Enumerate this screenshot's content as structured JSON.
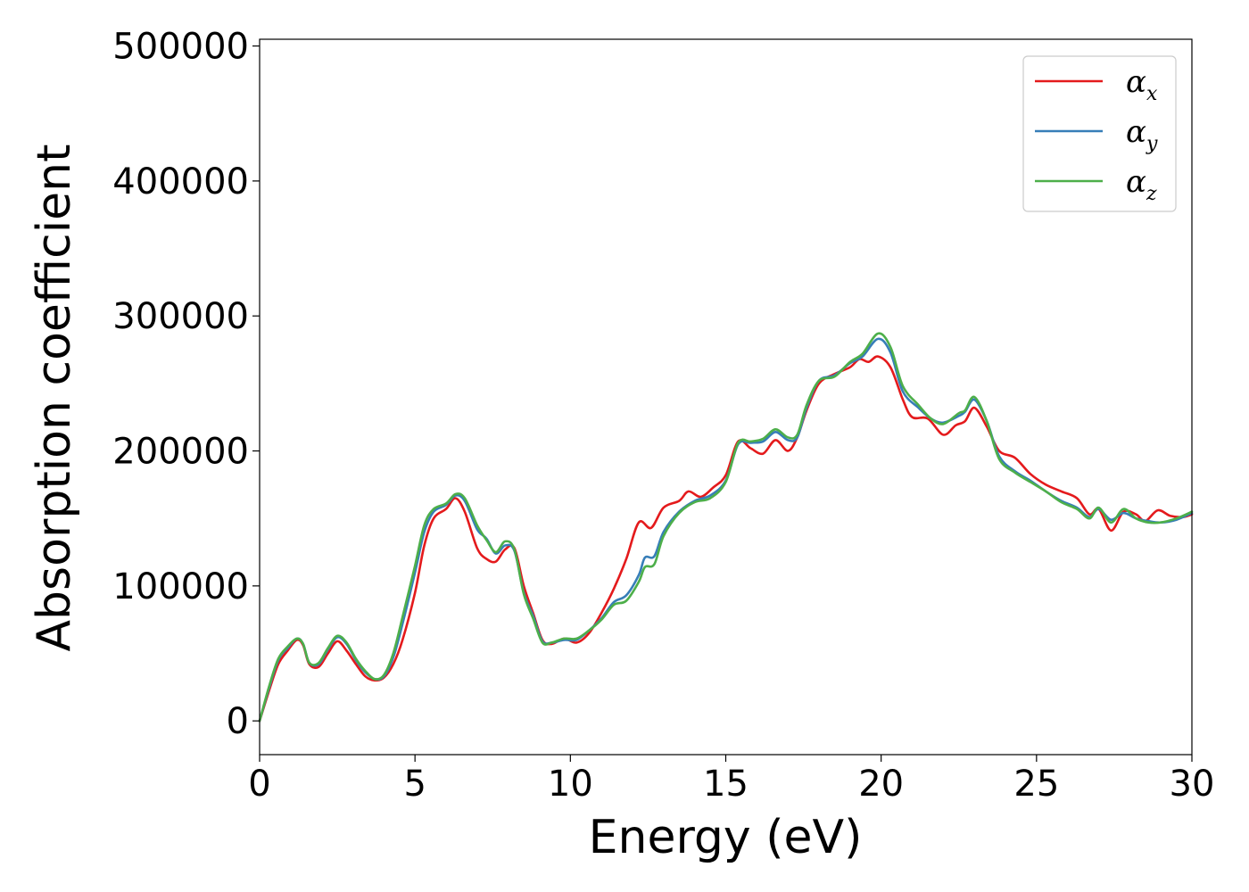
{
  "chart_data": {
    "type": "line",
    "xlabel": "Energy (eV)",
    "ylabel": "Absorption coefficient",
    "xlim": [
      0,
      30
    ],
    "ylim": [
      -25000,
      505000
    ],
    "xticks": [
      "0",
      "5",
      "10",
      "15",
      "20",
      "25",
      "30"
    ],
    "yticks": [
      "0",
      "100000",
      "200000",
      "300000",
      "400000",
      "500000"
    ],
    "grid": false,
    "legend_position": "top-right",
    "series": [
      {
        "name": "αx",
        "symbol": "α",
        "subscript": "x",
        "color": "#e41a1c",
        "points": [
          [
            0,
            0
          ],
          [
            0.3,
            22000
          ],
          [
            0.6,
            42000
          ],
          [
            0.9,
            52000
          ],
          [
            1.2,
            60000
          ],
          [
            1.4,
            56000
          ],
          [
            1.6,
            42000
          ],
          [
            1.9,
            40000
          ],
          [
            2.2,
            50000
          ],
          [
            2.5,
            59000
          ],
          [
            2.8,
            52000
          ],
          [
            3.1,
            42000
          ],
          [
            3.4,
            33000
          ],
          [
            3.7,
            30000
          ],
          [
            4.0,
            32000
          ],
          [
            4.3,
            42000
          ],
          [
            4.6,
            60000
          ],
          [
            5.0,
            95000
          ],
          [
            5.3,
            130000
          ],
          [
            5.6,
            150000
          ],
          [
            6.0,
            157000
          ],
          [
            6.3,
            165000
          ],
          [
            6.6,
            155000
          ],
          [
            7.0,
            128000
          ],
          [
            7.3,
            120000
          ],
          [
            7.6,
            118000
          ],
          [
            7.9,
            127000
          ],
          [
            8.2,
            128000
          ],
          [
            8.5,
            100000
          ],
          [
            8.8,
            80000
          ],
          [
            9.1,
            60000
          ],
          [
            9.4,
            57000
          ],
          [
            9.8,
            61000
          ],
          [
            10.2,
            58000
          ],
          [
            10.6,
            65000
          ],
          [
            11.0,
            80000
          ],
          [
            11.4,
            98000
          ],
          [
            11.8,
            120000
          ],
          [
            12.2,
            147000
          ],
          [
            12.6,
            143000
          ],
          [
            13.0,
            158000
          ],
          [
            13.5,
            163000
          ],
          [
            13.8,
            170000
          ],
          [
            14.2,
            166000
          ],
          [
            14.6,
            173000
          ],
          [
            15.0,
            182000
          ],
          [
            15.4,
            207000
          ],
          [
            15.8,
            202000
          ],
          [
            16.2,
            198000
          ],
          [
            16.6,
            208000
          ],
          [
            17.0,
            200000
          ],
          [
            17.3,
            210000
          ],
          [
            17.6,
            230000
          ],
          [
            18.0,
            250000
          ],
          [
            18.5,
            257000
          ],
          [
            19.0,
            262000
          ],
          [
            19.3,
            268000
          ],
          [
            19.6,
            266000
          ],
          [
            19.9,
            270000
          ],
          [
            20.3,
            262000
          ],
          [
            20.7,
            238000
          ],
          [
            21.0,
            225000
          ],
          [
            21.5,
            224000
          ],
          [
            22.0,
            212000
          ],
          [
            22.4,
            219000
          ],
          [
            22.7,
            222000
          ],
          [
            23.0,
            232000
          ],
          [
            23.4,
            218000
          ],
          [
            23.8,
            200000
          ],
          [
            24.3,
            195000
          ],
          [
            24.8,
            183000
          ],
          [
            25.3,
            175000
          ],
          [
            25.8,
            170000
          ],
          [
            26.3,
            165000
          ],
          [
            26.7,
            153000
          ],
          [
            27.0,
            157000
          ],
          [
            27.4,
            141000
          ],
          [
            27.8,
            155000
          ],
          [
            28.2,
            153000
          ],
          [
            28.5,
            148000
          ],
          [
            28.9,
            156000
          ],
          [
            29.3,
            152000
          ],
          [
            29.7,
            151000
          ],
          [
            30.0,
            153000
          ]
        ]
      },
      {
        "name": "αy",
        "symbol": "α",
        "subscript": "y",
        "color": "#377eb8",
        "points": [
          [
            0,
            0
          ],
          [
            0.3,
            24000
          ],
          [
            0.6,
            45000
          ],
          [
            0.9,
            54000
          ],
          [
            1.2,
            61000
          ],
          [
            1.4,
            57000
          ],
          [
            1.6,
            43000
          ],
          [
            1.9,
            42000
          ],
          [
            2.2,
            53000
          ],
          [
            2.5,
            62000
          ],
          [
            2.8,
            57000
          ],
          [
            3.1,
            45000
          ],
          [
            3.4,
            36000
          ],
          [
            3.7,
            31000
          ],
          [
            4.0,
            33000
          ],
          [
            4.3,
            47000
          ],
          [
            4.6,
            72000
          ],
          [
            5.0,
            110000
          ],
          [
            5.3,
            140000
          ],
          [
            5.6,
            155000
          ],
          [
            6.0,
            160000
          ],
          [
            6.3,
            167000
          ],
          [
            6.6,
            163000
          ],
          [
            7.0,
            142000
          ],
          [
            7.3,
            135000
          ],
          [
            7.6,
            124000
          ],
          [
            7.9,
            130000
          ],
          [
            8.2,
            126000
          ],
          [
            8.5,
            95000
          ],
          [
            8.8,
            78000
          ],
          [
            9.1,
            59000
          ],
          [
            9.4,
            58000
          ],
          [
            9.8,
            60000
          ],
          [
            10.2,
            60000
          ],
          [
            10.6,
            67000
          ],
          [
            11.0,
            76000
          ],
          [
            11.4,
            88000
          ],
          [
            11.8,
            93000
          ],
          [
            12.2,
            108000
          ],
          [
            12.4,
            121000
          ],
          [
            12.7,
            122000
          ],
          [
            13.0,
            140000
          ],
          [
            13.5,
            155000
          ],
          [
            14.0,
            163000
          ],
          [
            14.5,
            167000
          ],
          [
            15.0,
            178000
          ],
          [
            15.4,
            205000
          ],
          [
            15.8,
            206000
          ],
          [
            16.2,
            207000
          ],
          [
            16.6,
            214000
          ],
          [
            17.0,
            208000
          ],
          [
            17.3,
            210000
          ],
          [
            17.6,
            232000
          ],
          [
            18.0,
            252000
          ],
          [
            18.5,
            256000
          ],
          [
            19.0,
            265000
          ],
          [
            19.4,
            270000
          ],
          [
            19.9,
            283000
          ],
          [
            20.3,
            273000
          ],
          [
            20.7,
            244000
          ],
          [
            21.2,
            232000
          ],
          [
            21.6,
            224000
          ],
          [
            22.0,
            221000
          ],
          [
            22.5,
            226000
          ],
          [
            22.7,
            229000
          ],
          [
            23.0,
            238000
          ],
          [
            23.4,
            222000
          ],
          [
            23.8,
            196000
          ],
          [
            24.3,
            185000
          ],
          [
            24.8,
            178000
          ],
          [
            25.3,
            170000
          ],
          [
            25.8,
            163000
          ],
          [
            26.3,
            158000
          ],
          [
            26.7,
            151000
          ],
          [
            27.0,
            157000
          ],
          [
            27.4,
            149000
          ],
          [
            27.8,
            154000
          ],
          [
            28.2,
            150000
          ],
          [
            28.6,
            148000
          ],
          [
            29.0,
            147000
          ],
          [
            29.5,
            149000
          ],
          [
            30.0,
            154000
          ]
        ]
      },
      {
        "name": "αz",
        "symbol": "α",
        "subscript": "z",
        "color": "#4daf4a",
        "points": [
          [
            0,
            0
          ],
          [
            0.3,
            25000
          ],
          [
            0.6,
            46000
          ],
          [
            0.9,
            55000
          ],
          [
            1.2,
            61000
          ],
          [
            1.4,
            57000
          ],
          [
            1.6,
            43000
          ],
          [
            1.9,
            43000
          ],
          [
            2.2,
            54000
          ],
          [
            2.5,
            63000
          ],
          [
            2.8,
            58000
          ],
          [
            3.1,
            46000
          ],
          [
            3.4,
            37000
          ],
          [
            3.7,
            31000
          ],
          [
            4.0,
            34000
          ],
          [
            4.3,
            50000
          ],
          [
            4.6,
            77000
          ],
          [
            5.0,
            115000
          ],
          [
            5.3,
            145000
          ],
          [
            5.6,
            157000
          ],
          [
            6.0,
            161000
          ],
          [
            6.3,
            168000
          ],
          [
            6.6,
            165000
          ],
          [
            7.0,
            145000
          ],
          [
            7.3,
            134000
          ],
          [
            7.6,
            125000
          ],
          [
            7.9,
            133000
          ],
          [
            8.2,
            127000
          ],
          [
            8.5,
            94000
          ],
          [
            8.8,
            76000
          ],
          [
            9.1,
            58000
          ],
          [
            9.4,
            58000
          ],
          [
            9.8,
            61000
          ],
          [
            10.2,
            61000
          ],
          [
            10.6,
            67000
          ],
          [
            11.0,
            75000
          ],
          [
            11.4,
            86000
          ],
          [
            11.8,
            89000
          ],
          [
            12.2,
            103000
          ],
          [
            12.4,
            114000
          ],
          [
            12.7,
            116000
          ],
          [
            13.0,
            137000
          ],
          [
            13.5,
            154000
          ],
          [
            14.0,
            162000
          ],
          [
            14.5,
            165000
          ],
          [
            15.0,
            177000
          ],
          [
            15.4,
            206000
          ],
          [
            15.8,
            207000
          ],
          [
            16.2,
            209000
          ],
          [
            16.6,
            216000
          ],
          [
            17.0,
            210000
          ],
          [
            17.3,
            212000
          ],
          [
            17.6,
            234000
          ],
          [
            18.0,
            252000
          ],
          [
            18.5,
            255000
          ],
          [
            19.0,
            266000
          ],
          [
            19.4,
            272000
          ],
          [
            19.9,
            287000
          ],
          [
            20.3,
            277000
          ],
          [
            20.7,
            248000
          ],
          [
            21.2,
            234000
          ],
          [
            21.6,
            224000
          ],
          [
            22.0,
            220000
          ],
          [
            22.5,
            228000
          ],
          [
            22.7,
            230000
          ],
          [
            23.0,
            240000
          ],
          [
            23.4,
            222000
          ],
          [
            23.8,
            194000
          ],
          [
            24.3,
            184000
          ],
          [
            24.8,
            177000
          ],
          [
            25.3,
            170000
          ],
          [
            25.8,
            162000
          ],
          [
            26.3,
            157000
          ],
          [
            26.7,
            150000
          ],
          [
            27.0,
            158000
          ],
          [
            27.4,
            147000
          ],
          [
            27.8,
            157000
          ],
          [
            28.2,
            150000
          ],
          [
            28.6,
            147000
          ],
          [
            29.0,
            147000
          ],
          [
            29.5,
            150000
          ],
          [
            30.0,
            155000
          ]
        ]
      }
    ]
  }
}
